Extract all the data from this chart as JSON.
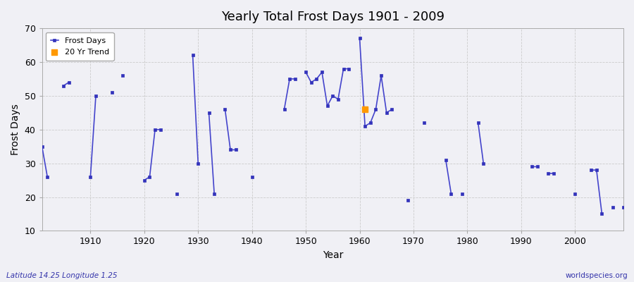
{
  "title": "Yearly Total Frost Days 1901 - 2009",
  "xlabel": "Year",
  "ylabel": "Frost Days",
  "footnote_left": "Latitude 14.25 Longitude 1.25",
  "footnote_right": "worldspecies.org",
  "ylim": [
    10,
    70
  ],
  "yticks": [
    10,
    20,
    30,
    40,
    50,
    60,
    70
  ],
  "bg_color": "#f0f0f5",
  "line_color": "#4444cc",
  "marker_color": "#3333bb",
  "trend_color": "#ff9900",
  "years": [
    1901,
    1902,
    1903,
    1904,
    1905,
    1906,
    1907,
    1908,
    1909,
    1910,
    1911,
    1912,
    1913,
    1914,
    1915,
    1916,
    1917,
    1918,
    1919,
    1920,
    1921,
    1922,
    1923,
    1924,
    1925,
    1926,
    1927,
    1928,
    1929,
    1930,
    1931,
    1932,
    1933,
    1934,
    1935,
    1936,
    1937,
    1938,
    1939,
    1940,
    1941,
    1942,
    1943,
    1944,
    1945,
    1946,
    1947,
    1948,
    1949,
    1950,
    1951,
    1952,
    1953,
    1954,
    1955,
    1956,
    1957,
    1958,
    1959,
    1960,
    1961,
    1962,
    1963,
    1964,
    1965,
    1966,
    1967,
    1968,
    1969,
    1970,
    1971,
    1972,
    1973,
    1974,
    1975,
    1976,
    1977,
    1978,
    1979,
    1980,
    1981,
    1982,
    1983,
    1984,
    1985,
    1986,
    1987,
    1988,
    1989,
    1990,
    1991,
    1992,
    1993,
    1994,
    1995,
    1996,
    1997,
    1998,
    1999,
    2000,
    2001,
    2002,
    2003,
    2004,
    2005,
    2006,
    2007,
    2008,
    2009
  ],
  "frost_days": [
    35,
    26,
    null,
    null,
    53,
    54,
    null,
    null,
    null,
    26,
    50,
    null,
    null,
    null,
    56,
    null,
    40,
    null,
    null,
    25,
    26,
    40,
    null,
    null,
    null,
    21,
    null,
    null,
    62,
    30,
    null,
    45,
    21,
    null,
    null,
    34,
    null,
    null,
    null,
    null,
    null,
    null,
    null,
    null,
    null,
    46,
    55,
    null,
    null,
    57,
    54,
    55,
    57,
    null,
    50,
    49,
    58,
    58,
    null,
    67,
    null,
    42,
    46,
    56,
    45,
    46,
    null,
    null,
    null,
    19,
    null,
    null,
    42,
    null,
    null,
    null,
    31,
    21,
    null,
    21,
    null,
    null,
    null,
    null,
    null,
    null,
    null,
    null,
    null,
    null,
    null,
    null,
    29,
    null,
    null,
    27,
    null,
    null,
    null,
    null,
    21,
    null,
    null,
    28,
    null,
    15,
    null,
    17,
    null
  ],
  "trend_year": 1961,
  "trend_value": 46
}
